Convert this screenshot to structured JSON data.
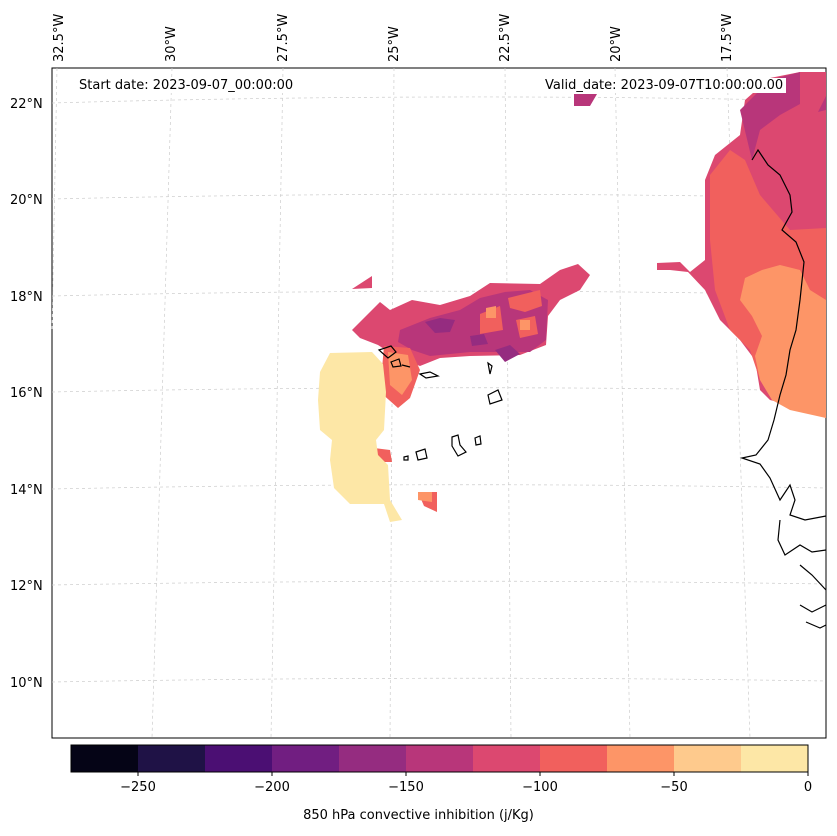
{
  "header": {
    "start_date": "Start date: 2023-09-07_00:00:00",
    "valid_date": "Valid_date: 2023-09-07T10:00:00.00"
  },
  "axes": {
    "lat_labels": [
      "22°N",
      "20°N",
      "18°N",
      "16°N",
      "14°N",
      "12°N",
      "10°N"
    ],
    "lon_labels": [
      "32.5°W",
      "30°W",
      "27.5°W",
      "25°W",
      "22.5°W",
      "20°W",
      "17.5°W"
    ]
  },
  "colorbar": {
    "label": "850 hPa convective inhibition (j/Kg)",
    "ticks": [
      "−250",
      "−200",
      "−150",
      "−100",
      "−50",
      "0"
    ],
    "colors": [
      "#050416",
      "#1f1246",
      "#4b0f73",
      "#711e81",
      "#952c80",
      "#b8367a",
      "#dc4870",
      "#f1605d",
      "#fd9567",
      "#feca8d",
      "#fde7a6"
    ]
  },
  "field_colors": {
    "lt_minus_150": "#b8367a",
    "minus_125": "#dc4870",
    "minus_100": "#f1605d",
    "minus_75": "#fd9567",
    "minus_50": "#feca8d",
    "minus_25": "#fde7a6",
    "deep": "#952c80",
    "deeper": "#711e81"
  }
}
